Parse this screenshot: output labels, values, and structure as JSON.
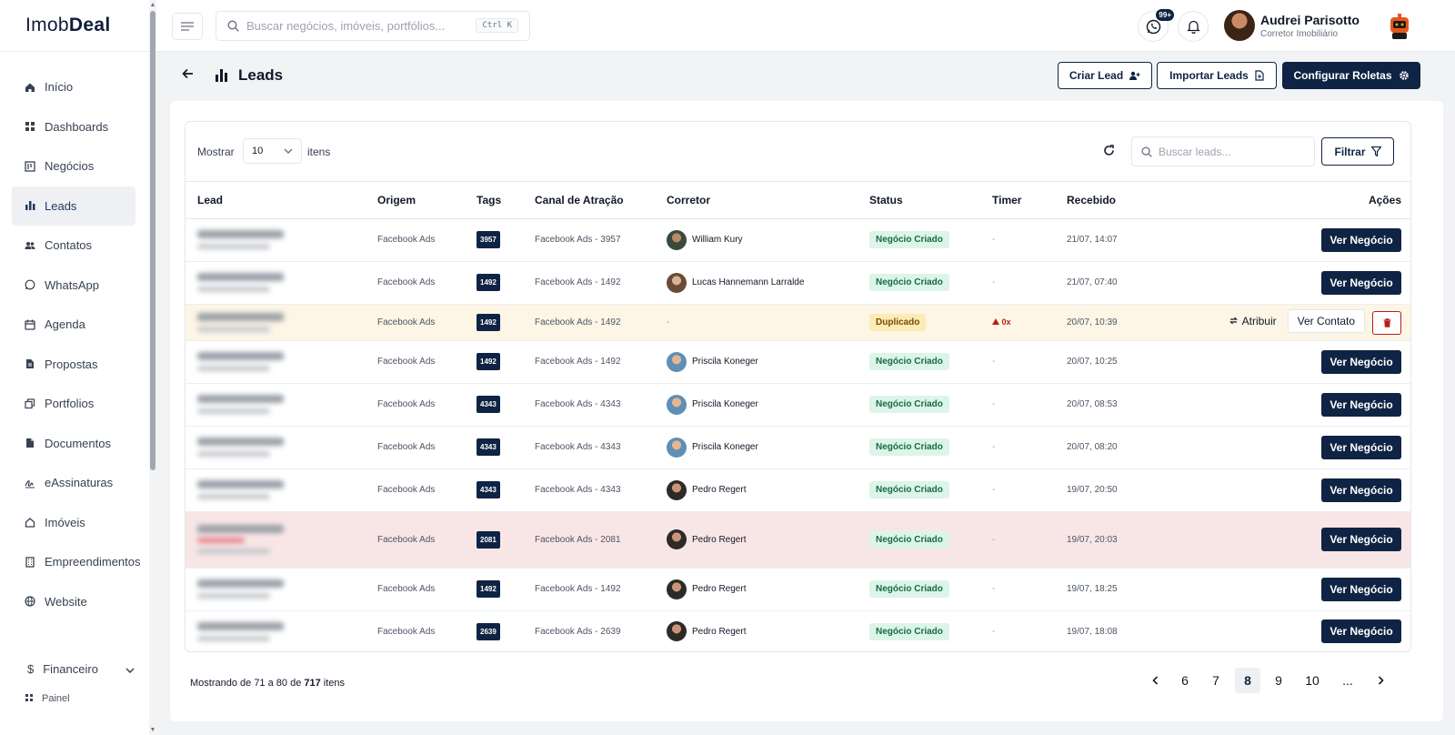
{
  "app": {
    "logo_light": "Imob",
    "logo_bold": "Deal"
  },
  "sidebar": {
    "items": [
      {
        "label": "Início",
        "icon": "home-icon"
      },
      {
        "label": "Dashboards",
        "icon": "grid-icon"
      },
      {
        "label": "Negócios",
        "icon": "kanban-icon"
      },
      {
        "label": "Leads",
        "icon": "bar-chart-icon",
        "active": true
      },
      {
        "label": "Contatos",
        "icon": "users-icon"
      },
      {
        "label": "WhatsApp",
        "icon": "whatsapp-icon"
      },
      {
        "label": "Agenda",
        "icon": "calendar-icon"
      },
      {
        "label": "Propostas",
        "icon": "file-icon"
      },
      {
        "label": "Portfolios",
        "icon": "copy-icon"
      },
      {
        "label": "Documentos",
        "icon": "document-icon"
      },
      {
        "label": "eAssinaturas",
        "icon": "signature-icon"
      },
      {
        "label": "Imóveis",
        "icon": "house-icon"
      },
      {
        "label": "Empreendimentos",
        "icon": "building-icon"
      },
      {
        "label": "Website",
        "icon": "globe-icon"
      }
    ],
    "financeiro": {
      "label": "Financeiro",
      "sub": "Painel"
    }
  },
  "topbar": {
    "search_placeholder": "Buscar negócios, imóveis, portfólios...",
    "shortcut": "Ctrl K",
    "whatsapp_badge": "99+"
  },
  "user": {
    "name": "Audrei Parisotto",
    "role": "Corretor Imobiliário"
  },
  "page": {
    "title": "Leads",
    "create": "Criar Lead",
    "import": "Importar Leads",
    "configure": "Configurar Roletas"
  },
  "toolbar": {
    "show": "Mostrar",
    "page_size": "10",
    "items": "itens",
    "search_placeholder": "Buscar leads...",
    "filter": "Filtrar"
  },
  "table": {
    "headers": [
      "Lead",
      "Origem",
      "Tags",
      "Canal de Atração",
      "Corretor",
      "Status",
      "Timer",
      "Recebido",
      "Ações"
    ],
    "rows": [
      {
        "origem": "Facebook Ads",
        "tag": "3957",
        "canal": "Facebook Ads - 3957",
        "corretor": "William Kury",
        "avatar": "av1",
        "status": "Negócio Criado",
        "timer": "-",
        "recebido": "21/07, 14:07",
        "action": "Ver Negócio"
      },
      {
        "origem": "Facebook Ads",
        "tag": "1492",
        "canal": "Facebook Ads - 1492",
        "corretor": "Lucas Hannemann Larralde",
        "avatar": "av2",
        "status": "Negócio Criado",
        "timer": "-",
        "recebido": "21/07, 07:40",
        "action": "Ver Negócio"
      },
      {
        "origem": "Facebook Ads",
        "tag": "1492",
        "canal": "Facebook Ads - 1492",
        "corretor": "-",
        "status": "Duplicado",
        "timer": "0x",
        "recebido": "20/07, 10:39",
        "dup": true,
        "assign": "Atribuir",
        "view_contact": "Ver Contato"
      },
      {
        "origem": "Facebook Ads",
        "tag": "1492",
        "canal": "Facebook Ads - 1492",
        "corretor": "Priscila Koneger",
        "avatar": "av3",
        "status": "Negócio Criado",
        "timer": "-",
        "recebido": "20/07, 10:25",
        "action": "Ver Negócio"
      },
      {
        "origem": "Facebook Ads",
        "tag": "4343",
        "canal": "Facebook Ads - 4343",
        "corretor": "Priscila Koneger",
        "avatar": "av3",
        "status": "Negócio Criado",
        "timer": "-",
        "recebido": "20/07, 08:53",
        "action": "Ver Negócio"
      },
      {
        "origem": "Facebook Ads",
        "tag": "4343",
        "canal": "Facebook Ads - 4343",
        "corretor": "Priscila Koneger",
        "avatar": "av3",
        "status": "Negócio Criado",
        "timer": "-",
        "recebido": "20/07, 08:20",
        "action": "Ver Negócio"
      },
      {
        "origem": "Facebook Ads",
        "tag": "4343",
        "canal": "Facebook Ads - 4343",
        "corretor": "Pedro Regert",
        "avatar": "av4",
        "status": "Negócio Criado",
        "timer": "-",
        "recebido": "19/07, 20:50",
        "action": "Ver Negócio"
      },
      {
        "origem": "Facebook Ads",
        "tag": "2081",
        "canal": "Facebook Ads - 2081",
        "corretor": "Pedro Regert",
        "avatar": "av4",
        "status": "Negócio Criado",
        "timer": "-",
        "recebido": "19/07, 20:03",
        "action": "Ver Negócio",
        "red": true
      },
      {
        "origem": "Facebook Ads",
        "tag": "1492",
        "canal": "Facebook Ads - 1492",
        "corretor": "Pedro Regert",
        "avatar": "av4",
        "status": "Negócio Criado",
        "timer": "-",
        "recebido": "19/07, 18:25",
        "action": "Ver Negócio"
      },
      {
        "origem": "Facebook Ads",
        "tag": "2639",
        "canal": "Facebook Ads - 2639",
        "corretor": "Pedro Regert",
        "avatar": "av4",
        "status": "Negócio Criado",
        "timer": "-",
        "recebido": "19/07, 18:08",
        "action": "Ver Negócio"
      }
    ]
  },
  "footer": {
    "showing_prefix": "Mostrando de 71 a 80 de",
    "total": "717",
    "suffix": "itens"
  },
  "pagination": {
    "pages": [
      "6",
      "7",
      "8",
      "9",
      "10",
      "..."
    ],
    "current": "8"
  }
}
